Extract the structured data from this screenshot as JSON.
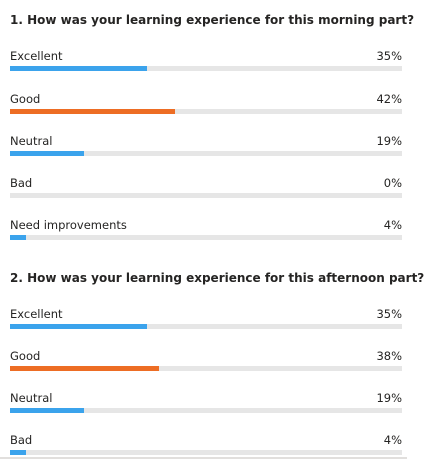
{
  "colors": {
    "excellent": "#3ba3ec",
    "good": "#ed6d24",
    "neutral": "#3ba3ec",
    "bad": "#3ba3ec",
    "need_improvements": "#3ba3ec",
    "track": "#e6e6e6"
  },
  "questions": [
    {
      "title": "1. How was your learning experience for this morning part?",
      "options": [
        {
          "label": "Excellent",
          "percent_text": "35%",
          "value": 0.35,
          "color": "#3ba3ec"
        },
        {
          "label": "Good",
          "percent_text": "42%",
          "value": 0.42,
          "color": "#ed6d24"
        },
        {
          "label": "Neutral",
          "percent_text": "19%",
          "value": 0.19,
          "color": "#3ba3ec"
        },
        {
          "label": "Bad",
          "percent_text": "0%",
          "value": 0.0,
          "color": "#3ba3ec"
        },
        {
          "label": "Need improvements",
          "percent_text": "4%",
          "value": 0.04,
          "color": "#3ba3ec"
        }
      ]
    },
    {
      "title": "2. How was your learning experience for this afternoon part?",
      "options": [
        {
          "label": "Excellent",
          "percent_text": "35%",
          "value": 0.35,
          "color": "#3ba3ec"
        },
        {
          "label": "Good",
          "percent_text": "38%",
          "value": 0.38,
          "color": "#ed6d24"
        },
        {
          "label": "Neutral",
          "percent_text": "19%",
          "value": 0.19,
          "color": "#3ba3ec"
        },
        {
          "label": "Bad",
          "percent_text": "4%",
          "value": 0.04,
          "color": "#3ba3ec"
        }
      ]
    }
  ]
}
